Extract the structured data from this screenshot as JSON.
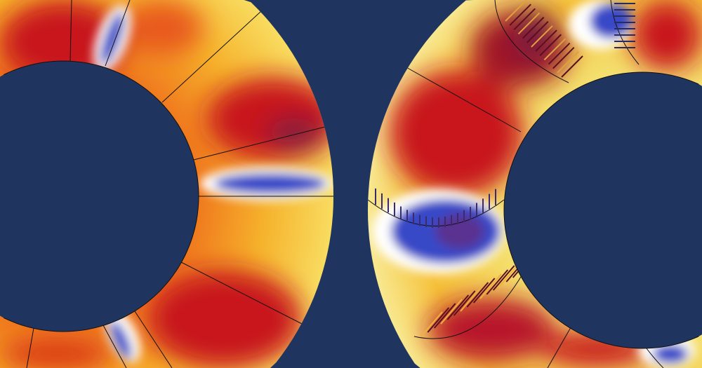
{
  "colors": {
    "background": "#1f3560",
    "base": "#f5c030",
    "hot": "#c8161c",
    "deep": "#7a1a3c",
    "cold": "#3848c8",
    "rim": "#ffffff",
    "mesh_line": "#111111"
  },
  "left_ring": {
    "label": ""
  },
  "right_ring": {
    "label": ""
  }
}
